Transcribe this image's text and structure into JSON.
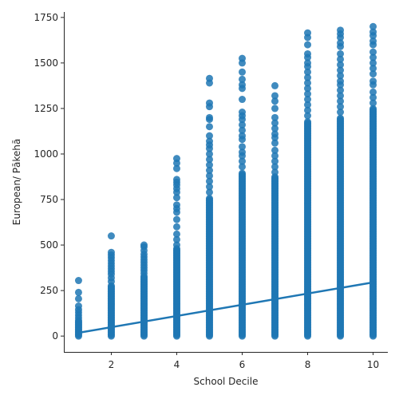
{
  "chart_data": {
    "type": "scatter",
    "title": "",
    "xlabel": "School Decile",
    "ylabel": "European/ Pākehā",
    "xlim": [
      0.55,
      10.45
    ],
    "ylim": [
      -87,
      1780
    ],
    "x_ticks": [
      2,
      4,
      6,
      8,
      10
    ],
    "x_tick_labels": [
      "2",
      "4",
      "6",
      "8",
      "10"
    ],
    "y_ticks": [
      0,
      250,
      500,
      750,
      1000,
      1250,
      1500,
      1750
    ],
    "y_tick_labels": [
      "0",
      "250",
      "500",
      "750",
      "1000",
      "1250",
      "1500",
      "1750"
    ],
    "grid": false,
    "legend": "none",
    "point_color": "#1f77b4",
    "line_color": "#1f77b4",
    "columns": [
      {
        "x": 1,
        "dense_max": 90,
        "outliers": [
          100,
          115,
          130,
          145,
          165,
          205,
          240,
          305
        ]
      },
      {
        "x": 2,
        "dense_max": 280,
        "outliers": [
          300,
          320,
          340,
          355,
          370,
          385,
          400,
          415,
          430,
          445,
          460,
          550
        ]
      },
      {
        "x": 3,
        "dense_max": 330,
        "outliers": [
          345,
          360,
          375,
          390,
          405,
          420,
          435,
          450,
          470,
          490,
          500
        ]
      },
      {
        "x": 4,
        "dense_max": 480,
        "outliers": [
          500,
          530,
          560,
          600,
          640,
          680,
          700,
          720,
          760,
          790,
          810,
          830,
          845,
          860,
          920,
          950,
          975
        ]
      },
      {
        "x": 5,
        "dense_max": 760,
        "outliers": [
          790,
          820,
          850,
          880,
          910,
          940,
          970,
          1000,
          1030,
          1050,
          1070,
          1100,
          1150,
          1190,
          1200,
          1260,
          1280,
          1390,
          1415
        ]
      },
      {
        "x": 6,
        "dense_max": 900,
        "outliers": [
          930,
          960,
          990,
          1010,
          1040,
          1080,
          1100,
          1130,
          1160,
          1190,
          1210,
          1230,
          1300,
          1360,
          1380,
          1410,
          1450,
          1500,
          1525
        ]
      },
      {
        "x": 7,
        "dense_max": 880,
        "outliers": [
          900,
          930,
          960,
          990,
          1020,
          1060,
          1090,
          1110,
          1140,
          1170,
          1200,
          1250,
          1290,
          1320,
          1375
        ]
      },
      {
        "x": 8,
        "dense_max": 1180,
        "outliers": [
          1210,
          1240,
          1270,
          1300,
          1330,
          1360,
          1390,
          1420,
          1450,
          1480,
          1500,
          1530,
          1550,
          1600,
          1640,
          1665
        ]
      },
      {
        "x": 9,
        "dense_max": 1200,
        "outliers": [
          1230,
          1260,
          1290,
          1320,
          1350,
          1380,
          1400,
          1430,
          1460,
          1490,
          1520,
          1550,
          1590,
          1610,
          1640,
          1660,
          1680
        ]
      },
      {
        "x": 10,
        "dense_max": 1250,
        "outliers": [
          1280,
          1310,
          1340,
          1380,
          1400,
          1440,
          1470,
          1500,
          1530,
          1560,
          1600,
          1620,
          1650,
          1670,
          1700
        ]
      }
    ],
    "regression": {
      "x": [
        1,
        10
      ],
      "y": [
        18,
        295
      ]
    }
  }
}
